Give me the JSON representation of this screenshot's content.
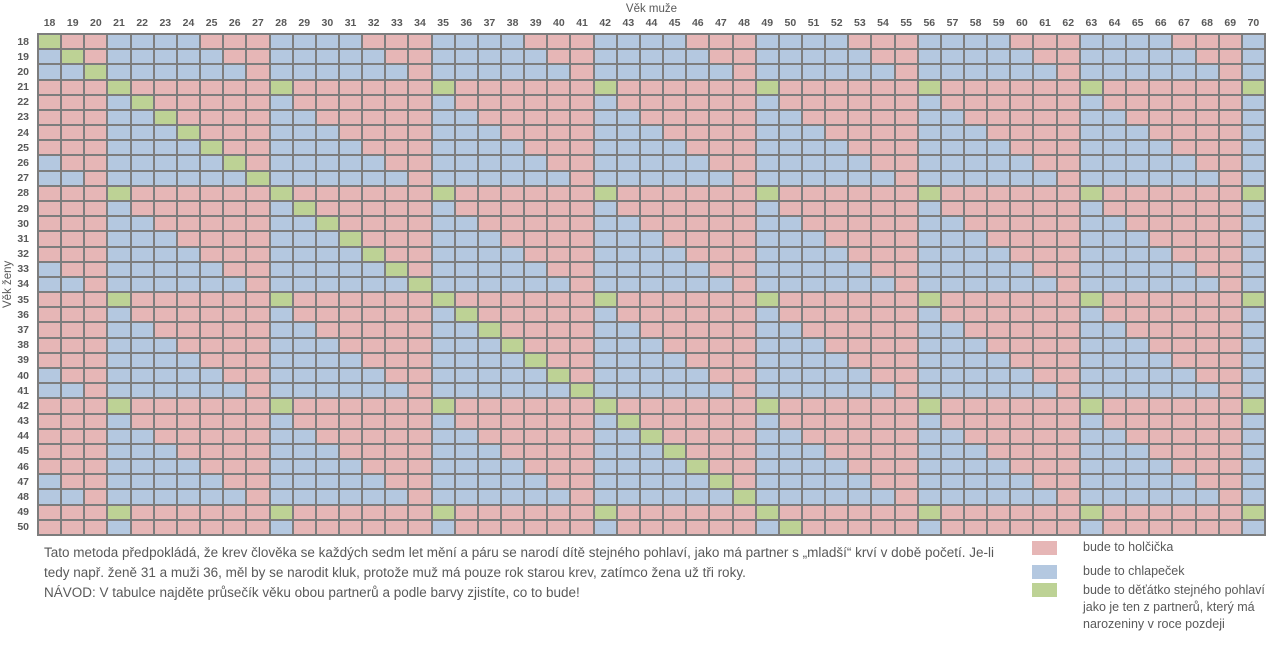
{
  "colors": {
    "pink": "#E6B6B6",
    "blue": "#B4C8E0",
    "green": "#BDD295",
    "grid_line": "#7D7D7D",
    "text": "#595959",
    "background": "#FFFFFF",
    "cell": {
      "P": "#E6B6B6",
      "B": "#B4C8E0",
      "G": "#BDD295"
    }
  },
  "chart_data": {
    "type": "heatmap",
    "xlabel": "Věk muže",
    "ylabel": "Věk ženy",
    "x_categories": [
      18,
      19,
      20,
      21,
      22,
      23,
      24,
      25,
      26,
      27,
      28,
      29,
      30,
      31,
      32,
      33,
      34,
      35,
      36,
      37,
      38,
      39,
      40,
      41,
      42,
      43,
      44,
      45,
      46,
      47,
      48,
      49,
      50,
      51,
      52,
      53,
      54,
      55,
      56,
      57,
      58,
      59,
      60,
      61,
      62,
      63,
      64,
      65,
      66,
      67,
      68,
      69,
      70
    ],
    "y_categories": [
      18,
      19,
      20,
      21,
      22,
      23,
      24,
      25,
      26,
      27,
      28,
      29,
      30,
      31,
      32,
      33,
      34,
      35,
      36,
      37,
      38,
      39,
      40,
      41,
      42,
      43,
      44,
      45,
      46,
      47,
      48,
      49,
      50
    ],
    "cell_meanings": {
      "P": "bude to holčička (girl)",
      "B": "bude to chlapeček (boy)",
      "G": "bude to děťátko stejného pohlaví jako partner s narozeninami později v roce"
    },
    "rows": [
      "GPPBBBBPPPBBBBPPPBBBBPPPBBBBPPPBBBBPPPBBBBPPPBBBBPPPB",
      "BGPBBBBBPPBBBBBPPBBBBBPPBBBBBPPBBBBBPPBBBBBPPBBBBBPPB",
      "BBGBBBBBBPBBBBBBPBBBBBBPBBBBBBPBBBBBBPBBBBBBPBBBBBBPB",
      "PPPGPPPPPPGPPPPPPGPPPPPPGPPPPPPGPPPPPPGPPPPPPGPPPPPPG",
      "PPPBGPPPPPBPPPPPPBPPPPPPBPPPPPPBPPPPPPBPPPPPPBPPPPPPB",
      "PPPBBGPPPPBBPPPPPBBPPPPPBBPPPPPBBPPPPPBBPPPPPBBPPPPPB",
      "PPPBBBGPPPBBBPPPPBBBPPPPBBBPPPPBBBPPPPBBBPPPPBBBPPPPB",
      "PPPBBBBGPPBBBBPPPBBBBPPPBBBBPPPBBBBPPPBBBBPPPBBBBPPPB",
      "BPPBBBBBGPBBBBBPPBBBBBPPBBBBBPPBBBBBPPBBBBBPPBBBBBPPB",
      "BBPBBBBBBGBBBBBBPBBBBBBPBBBBBBPBBBBBBPBBBBBBPBBBBBBPB",
      "PPPGPPPPPPGPPPPPPGPPPPPPGPPPPPPGPPPPPPGPPPPPPGPPPPPPG",
      "PPPBPPPPPPBGPPPPPBPPPPPPBPPPPPPBPPPPPPBPPPPPPBPPPPPPB",
      "PPPBBPPPPPBBGPPPPBBPPPPPBBPPPPPBBPPPPPBBPPPPPBBPPPPPB",
      "PPPBBBPPPPBBBGPPPBBBPPPPBBBPPPPBBBPPPPBBBPPPPBBBPPPPB",
      "PPPBBBBPPPBBBBGPPBBBBPPPBBBBPPPBBBBPPPBBBBPPPBBBBPPPB",
      "BPPBBBBBPPBBBBBGPBBBBBPPBBBBBPPBBBBBPPBBBBBPPBBBBBPPB",
      "BBPBBBBBBPBBBBBBGBBBBBBPBBBBBBPBBBBBBPBBBBBBPBBBBBBPB",
      "PPPGPPPPPPGPPPPPPGPPPPPPGPPPPPPGPPPPPPGPPPPPPGPPPPPPG",
      "PPPBPPPPPPBPPPPPPBGPPPPPBPPPPPPBPPPPPPBPPPPPPBPPPPPPB",
      "PPPBBPPPPPBBPPPPPBBGPPPPBBPPPPPBBPPPPPBBPPPPPBBPPPPPB",
      "PPPBBBPPPPBBBPPPPBBBGPPPBBBPPPPBBBPPPPBBBPPPPBBBPPPPB",
      "PPPBBBBPPPBBBBPPPBBBBGPPBBBBPPPBBBBPPPBBBBPPPBBBBPPPB",
      "BPPBBBBBPPBBBBBPPBBBBBGPBBBBBPPBBBBBPPBBBBBPPBBBBBPPB",
      "BBPBBBBBBPBBBBBBPBBBBBBGBBBBBBPBBBBBBPBBBBBBPBBBBBBPB",
      "PPPGPPPPPPGPPPPPPGPPPPPPGPPPPPPGPPPPPPGPPPPPPGPPPPPPG",
      "PPPBPPPPPPBPPPPPPBPPPPPPBGPPPPPBPPPPPPBPPPPPPBPPPPPPB",
      "PPPBBPPPPPBBPPPPPBBPPPPPBBGPPPPBBPPPPPBBPPPPPBBPPPPPB",
      "PPPBBBPPPPBBBPPPPBBBPPPPBBBGPPPBBBPPPPBBBPPPPBBBPPPPB",
      "PPPBBBBPPPBBBBPPPBBBBPPPBBBBGPPBBBBPPPBBBBPPPBBBBPPPB",
      "BPPBBBBBPPBBBBBPPBBBBBPPBBBBBGPBBBBBPPBBBBBPPBBBBBPPB",
      "BBPBBBBBBPBBBBBBPBBBBBBPBBBBBBGBBBBBBPBBBBBBPBBBBBBPB",
      "PPPGPPPPPPGPPPPPPGPPPPPPGPPPPPPGPPPPPPGPPPPPPGPPPPPPG",
      "PPPBPPPPPPBPPPPPPBPPPPPPBPPPPPPBGPPPPPBPPPPPPBPPPPPPB"
    ],
    "legend": [
      {
        "code": "P",
        "color": "#E6B6B6",
        "label_lines": [
          "bude to holčička"
        ]
      },
      {
        "code": "B",
        "color": "#B4C8E0",
        "label_lines": [
          "bude to chlapeček"
        ]
      },
      {
        "code": "G",
        "color": "#BDD295",
        "label_lines": [
          "bude to děťátko stejného pohlaví",
          "jako je ten z partnerů, který má",
          "narozeniny v roce pozdeji"
        ]
      }
    ],
    "legend_position": "bottom-right",
    "grid": true
  },
  "note_lines": [
    "Tato metoda předpokládá, že krev člověka se každých sedm let mění a páru se narodí dítě stejného pohlaví, jako má partner s „mladší“ krví v době početí. Je-li",
    "tedy např. ženě 31 a muži 36, měl by se narodit kluk, protože muž má pouze rok starou krev, zatímco žena už tři roky.",
    "NÁVOD: V tabulce najděte průsečík věku obou partnerů a podle barvy zjistíte, co to bude!"
  ]
}
